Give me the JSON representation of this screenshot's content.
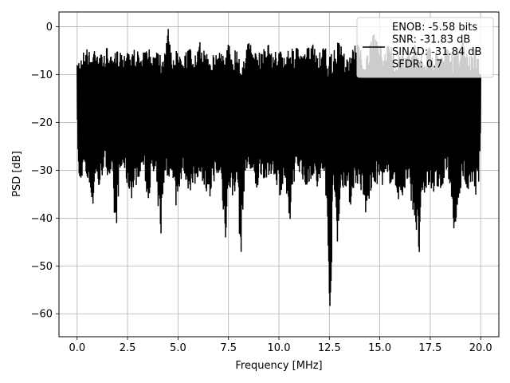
{
  "chart_data": {
    "type": "line",
    "xlabel": "Frequency [MHz]",
    "ylabel": "PSD [dB]",
    "xlim": [
      -0.9,
      20.9
    ],
    "ylim": [
      -64.8,
      3.1
    ],
    "xticks": [
      0.0,
      2.5,
      5.0,
      7.5,
      10.0,
      12.5,
      15.0,
      17.5,
      20.0
    ],
    "xtick_labels": [
      "0.0",
      "2.5",
      "5.0",
      "7.5",
      "10.0",
      "12.5",
      "15.0",
      "17.5",
      "20.0"
    ],
    "yticks": [
      0,
      -10,
      -20,
      -30,
      -40,
      -50,
      -60
    ],
    "ytick_labels": [
      "0",
      "−10",
      "−20",
      "−30",
      "−40",
      "−50",
      "−60"
    ],
    "grid": true,
    "legend_position": "top-right",
    "line_color": "#000000",
    "series": [
      {
        "name": "ENOB: -5.58 bits\nSNR: -31.83 dB\nSINAD: -31.84 dB\nSFDR: 0.7",
        "x": [
          0.0,
          0.1,
          0.3,
          0.5,
          0.7,
          0.75,
          0.9,
          1.1,
          1.3,
          1.5,
          1.75,
          1.9,
          2.1,
          2.3,
          2.5,
          2.7,
          2.95,
          3.1,
          3.3,
          3.5,
          3.7,
          3.9,
          4.15,
          4.35,
          4.5,
          4.7,
          4.9,
          5.1,
          5.3,
          5.5,
          5.75,
          5.9,
          6.1,
          6.3,
          6.55,
          6.7,
          6.9,
          7.1,
          7.35,
          7.5,
          7.7,
          7.95,
          8.1,
          8.3,
          8.5,
          8.7,
          8.9,
          9.1,
          9.3,
          9.5,
          9.7,
          9.95,
          10.1,
          10.3,
          10.5,
          10.7,
          10.9,
          11.1,
          11.3,
          11.5,
          11.7,
          11.9,
          12.1,
          12.3,
          12.55,
          12.7,
          12.9,
          13.1,
          13.3,
          13.55,
          13.7,
          13.9,
          14.1,
          14.3,
          14.5,
          14.7,
          14.9,
          15.1,
          15.3,
          15.5,
          15.7,
          15.9,
          16.1,
          16.3,
          16.5,
          16.7,
          16.95,
          17.1,
          17.3,
          17.5,
          17.7,
          17.9,
          18.1,
          18.3,
          18.5,
          18.7,
          18.95,
          19.1,
          19.3,
          19.5,
          19.7,
          19.9,
          20.0
        ],
        "y_max": [
          -8,
          -6,
          -5,
          -4,
          -6,
          -5,
          -3,
          -5,
          -6,
          -4,
          -7,
          -5,
          -4,
          -6,
          -3,
          -5,
          -4,
          -7,
          -5,
          -4,
          -6,
          -3,
          -5,
          -4,
          0,
          -6,
          -5,
          -3,
          -6,
          -4,
          -5,
          -6,
          -3,
          -5,
          -4,
          -6,
          -5,
          -4,
          -6,
          -3,
          -5,
          -4,
          -6,
          -5,
          -3,
          -4,
          -6,
          -5,
          -4,
          -3,
          -6,
          -4,
          -5,
          -6,
          -3,
          -5,
          -4,
          -6,
          -5,
          -4,
          -3,
          -6,
          -5,
          -4,
          -6,
          -5,
          -3,
          -4,
          -6,
          -5,
          -4,
          -3,
          -5,
          -6,
          -4,
          -1,
          -2,
          -5,
          -4,
          -3,
          -6,
          -5,
          -4,
          -6,
          -5,
          -3,
          -4,
          -6,
          -5,
          -4,
          -6,
          -3,
          -5,
          -4,
          -6,
          -5,
          -4,
          -3,
          -5,
          -6,
          -4,
          -6,
          -9
        ],
        "y_min": [
          -20,
          -35,
          -30,
          -33,
          -35,
          -40,
          -32,
          -35,
          -30,
          -31,
          -33,
          -45,
          -32,
          -30,
          -34,
          -36,
          -33,
          -31,
          -30,
          -37,
          -32,
          -33,
          -44,
          -31,
          -32,
          -30,
          -38,
          -33,
          -31,
          -34,
          -35,
          -33,
          -30,
          -34,
          -39,
          -32,
          -33,
          -31,
          -45,
          -34,
          -36,
          -33,
          -50,
          -32,
          -30,
          -33,
          -35,
          -31,
          -32,
          -33,
          -30,
          -34,
          -36,
          -32,
          -45,
          -33,
          -31,
          -30,
          -35,
          -33,
          -31,
          -35,
          -33,
          -32,
          -62,
          -33,
          -45,
          -35,
          -33,
          -38,
          -34,
          -33,
          -35,
          -40,
          -36,
          -34,
          -33,
          -33,
          -34,
          -33,
          -33,
          -36,
          -38,
          -33,
          -35,
          -40,
          -49,
          -37,
          -35,
          -33,
          -36,
          -34,
          -35,
          -31,
          -33,
          -47,
          -35,
          -32,
          -35,
          -34,
          -36,
          -33,
          -22
        ]
      }
    ]
  }
}
